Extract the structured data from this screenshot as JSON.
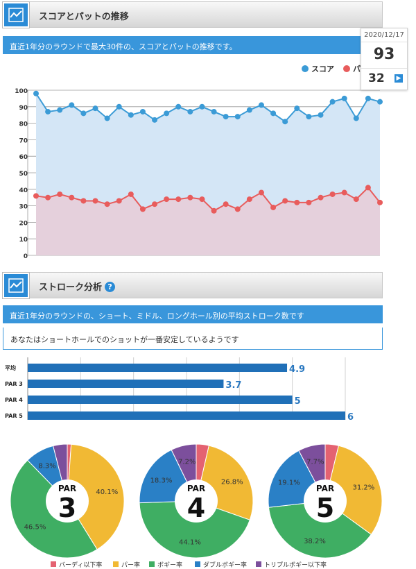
{
  "section1": {
    "title": "スコアとパットの推移",
    "description": "直近1年分のラウンドで最大30件の、スコアとパットの推移です。"
  },
  "tooltip": {
    "date": "2020/12/17",
    "score": "93",
    "putt": "32"
  },
  "section2": {
    "title": "ストローク分析",
    "description": "直近1年分のラウンドの、ショート、ミドル、ロングホール別の平均ストローク数です",
    "note": "あなたはショートホールでのショットが一番安定しているようです"
  },
  "colors": {
    "score": "#3b9bd6",
    "putt": "#e85c5c",
    "score_fill": "#d4e6f6",
    "putt_fill": "#e5d0dc",
    "bar": "#2070b8",
    "birdie": "#e46271",
    "par": "#f1b934",
    "bogey": "#3fae63",
    "double": "#2a80c6",
    "triple": "#7c4f9c"
  },
  "chart_data": [
    {
      "type": "line",
      "legend_placement": "top-right",
      "ylim": [
        0,
        100
      ],
      "yticks": [
        0,
        10,
        20,
        30,
        40,
        50,
        60,
        70,
        80,
        90,
        100
      ],
      "grid": true,
      "series": [
        {
          "name": "スコア",
          "values": [
            98,
            87,
            88,
            91,
            86,
            89,
            83,
            90,
            85,
            87,
            82,
            86,
            90,
            87,
            90,
            87,
            84,
            84,
            88,
            91,
            86,
            81,
            89,
            84,
            85,
            93,
            95,
            83,
            95,
            93
          ]
        },
        {
          "name": "パット",
          "values": [
            36,
            35,
            37,
            35,
            33,
            33,
            31,
            33,
            37,
            28,
            31,
            34,
            34,
            35,
            34,
            27,
            31,
            28,
            34,
            38,
            29,
            33,
            32,
            32,
            35,
            37,
            38,
            34,
            41,
            32
          ]
        }
      ]
    },
    {
      "type": "bar",
      "orientation": "horizontal",
      "categories": [
        "平均",
        "PAR 3",
        "PAR 4",
        "PAR 5"
      ],
      "values": [
        4.9,
        3.7,
        5,
        6
      ],
      "value_labels": [
        "4.9",
        "3.7",
        "5",
        "6"
      ],
      "xlim": [
        0,
        6
      ]
    },
    {
      "type": "pie",
      "center_label": "PAR",
      "center_number": "3",
      "labels": [
        "バーディ以下率",
        "パー率",
        "ボギー率",
        "ダブルボギー率",
        "トリプルボギー以下率"
      ],
      "values": [
        1.1,
        40.1,
        46.5,
        8.3,
        4.0
      ],
      "value_labels": [
        "",
        "40.1%",
        "46.5%",
        "8.3%",
        ""
      ]
    },
    {
      "type": "pie",
      "center_label": "PAR",
      "center_number": "4",
      "labels": [
        "バーディ以下率",
        "パー率",
        "ボギー率",
        "ダブルボギー率",
        "トリプルボギー以下率"
      ],
      "values": [
        3.6,
        26.8,
        44.1,
        18.3,
        7.2
      ],
      "value_labels": [
        "",
        "26.8%",
        "44.1%",
        "18.3%",
        "7.2%"
      ]
    },
    {
      "type": "pie",
      "center_label": "PAR",
      "center_number": "5",
      "labels": [
        "バーディ以下率",
        "パー率",
        "ボギー率",
        "ダブルボギー率",
        "トリプルボギー以下率"
      ],
      "values": [
        3.8,
        31.2,
        38.2,
        19.1,
        7.7
      ],
      "value_labels": [
        "",
        "31.2%",
        "38.2%",
        "19.1%",
        "7.7%"
      ]
    }
  ]
}
